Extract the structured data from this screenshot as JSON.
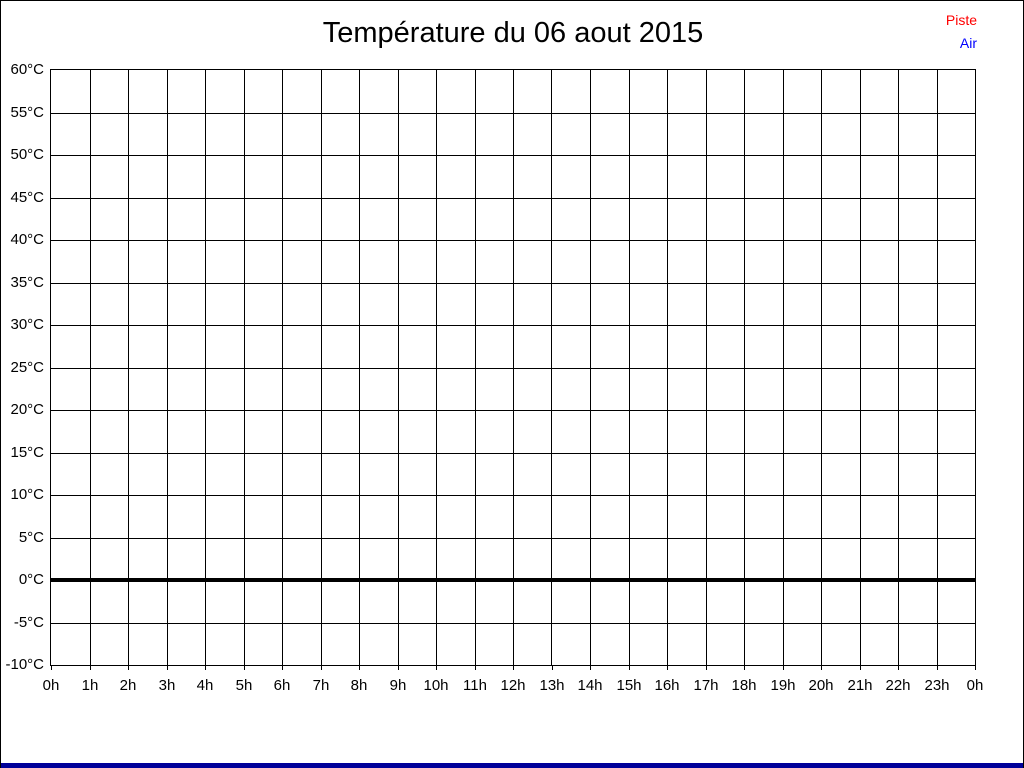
{
  "title": "Température du 06 aout 2015",
  "legend": {
    "items": [
      {
        "label": "Piste",
        "color": "#ff0000"
      },
      {
        "label": "Air",
        "color": "#0000ff"
      }
    ]
  },
  "colors": {
    "grid": "#000000",
    "frame_border": "#000000",
    "zero_line": "#000000",
    "title_text": "#000000",
    "axis_text": "#000000",
    "bottom_bar": "#000099",
    "background": "#ffffff"
  },
  "chart_data": {
    "type": "line",
    "title": "Température du 06 aout 2015",
    "x_ticks": [
      "0h",
      "1h",
      "2h",
      "3h",
      "4h",
      "5h",
      "6h",
      "7h",
      "8h",
      "9h",
      "10h",
      "11h",
      "12h",
      "13h",
      "14h",
      "15h",
      "16h",
      "17h",
      "18h",
      "19h",
      "20h",
      "21h",
      "22h",
      "23h",
      "0h"
    ],
    "y_ticks": [
      60,
      55,
      50,
      45,
      40,
      35,
      30,
      25,
      20,
      15,
      10,
      5,
      0,
      -5,
      -10
    ],
    "y_tick_suffix": "°C",
    "ylim": [
      -10,
      60
    ],
    "xlim_hours": [
      0,
      24
    ],
    "grid": true,
    "zero_line_value": 0,
    "legend_position": "top-right",
    "series": [
      {
        "name": "Piste",
        "color": "#ff0000",
        "values": []
      },
      {
        "name": "Air",
        "color": "#0000ff",
        "values": []
      }
    ]
  }
}
